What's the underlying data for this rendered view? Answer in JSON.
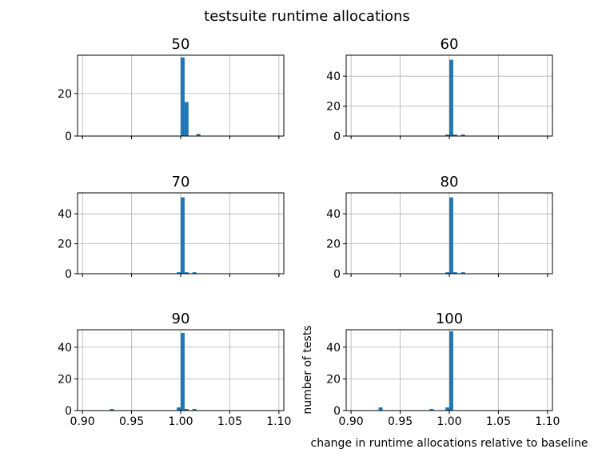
{
  "figure": {
    "title": "testsuite runtime allocations",
    "xlabel": "change in runtime allocations relative to baseline",
    "ylabel": "number of tests",
    "bar_color": "#1f77b4"
  },
  "chart_data": [
    {
      "type": "bar",
      "title": "50",
      "xlim": [
        0.895,
        1.105
      ],
      "ylim": [
        0,
        38
      ],
      "xticks": [
        0.9,
        0.95,
        1.0,
        1.05,
        1.1
      ],
      "xtick_labels": [],
      "yticks": [
        0,
        20
      ],
      "bin_width": 0.004,
      "bins": [
        {
          "x": 1.002,
          "y": 37
        },
        {
          "x": 1.006,
          "y": 16
        },
        {
          "x": 1.018,
          "y": 1
        }
      ],
      "grid": true
    },
    {
      "type": "bar",
      "title": "60",
      "xlim": [
        0.895,
        1.105
      ],
      "ylim": [
        0,
        54
      ],
      "xticks": [
        0.9,
        0.95,
        1.0,
        1.05,
        1.1
      ],
      "xtick_labels": [],
      "yticks": [
        0,
        20,
        40
      ],
      "bin_width": 0.004,
      "bins": [
        {
          "x": 0.998,
          "y": 1
        },
        {
          "x": 1.002,
          "y": 51
        },
        {
          "x": 1.006,
          "y": 1
        },
        {
          "x": 1.014,
          "y": 1
        }
      ],
      "grid": true
    },
    {
      "type": "bar",
      "title": "70",
      "xlim": [
        0.895,
        1.105
      ],
      "ylim": [
        0,
        54
      ],
      "xticks": [
        0.9,
        0.95,
        1.0,
        1.05,
        1.1
      ],
      "xtick_labels": [],
      "yticks": [
        0,
        20,
        40
      ],
      "bin_width": 0.004,
      "bins": [
        {
          "x": 0.998,
          "y": 1
        },
        {
          "x": 1.002,
          "y": 51
        },
        {
          "x": 1.006,
          "y": 1
        },
        {
          "x": 1.014,
          "y": 1
        }
      ],
      "grid": true
    },
    {
      "type": "bar",
      "title": "80",
      "xlim": [
        0.895,
        1.105
      ],
      "ylim": [
        0,
        54
      ],
      "xticks": [
        0.9,
        0.95,
        1.0,
        1.05,
        1.1
      ],
      "xtick_labels": [],
      "yticks": [
        0,
        20,
        40
      ],
      "bin_width": 0.004,
      "bins": [
        {
          "x": 0.998,
          "y": 1
        },
        {
          "x": 1.002,
          "y": 51
        },
        {
          "x": 1.006,
          "y": 1
        },
        {
          "x": 1.014,
          "y": 1
        }
      ],
      "grid": true
    },
    {
      "type": "bar",
      "title": "90",
      "xlim": [
        0.895,
        1.105
      ],
      "ylim": [
        0,
        51
      ],
      "xticks": [
        0.9,
        0.95,
        1.0,
        1.05,
        1.1
      ],
      "xtick_labels": [
        "0.90",
        "0.95",
        "1.00",
        "1.05",
        "1.10"
      ],
      "yticks": [
        0,
        20,
        40
      ],
      "bin_width": 0.004,
      "bins": [
        {
          "x": 0.93,
          "y": 1
        },
        {
          "x": 0.998,
          "y": 2
        },
        {
          "x": 1.002,
          "y": 49
        },
        {
          "x": 1.006,
          "y": 1
        },
        {
          "x": 1.014,
          "y": 1
        }
      ],
      "grid": true
    },
    {
      "type": "bar",
      "title": "100",
      "xlim": [
        0.895,
        1.105
      ],
      "ylim": [
        0,
        51
      ],
      "xticks": [
        0.9,
        0.95,
        1.0,
        1.05,
        1.1
      ],
      "xtick_labels": [
        "0.90",
        "0.95",
        "1.00",
        "1.05",
        "1.10"
      ],
      "yticks": [
        0,
        20,
        40
      ],
      "bin_width": 0.004,
      "bins": [
        {
          "x": 0.93,
          "y": 2
        },
        {
          "x": 0.982,
          "y": 1
        },
        {
          "x": 0.998,
          "y": 2
        },
        {
          "x": 1.002,
          "y": 50
        }
      ],
      "grid": true
    }
  ]
}
